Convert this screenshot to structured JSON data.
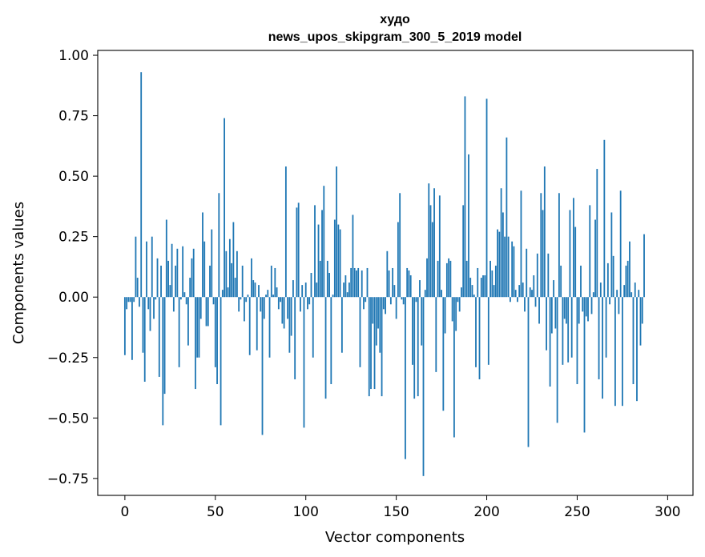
{
  "chart_data": {
    "type": "bar",
    "title_line1": "худо",
    "title_line2": "news_upos_skipgram_300_5_2019 model",
    "xlabel": "Vector components",
    "ylabel": "Components values",
    "xlim": [
      -15,
      314
    ],
    "ylim": [
      -0.82,
      1.02
    ],
    "xticks": [
      0,
      50,
      100,
      150,
      200,
      250,
      300
    ],
    "xtick_labels": [
      "0",
      "50",
      "100",
      "150",
      "200",
      "250",
      "300"
    ],
    "yticks": [
      -0.75,
      -0.5,
      -0.25,
      0.0,
      0.25,
      0.5,
      0.75,
      1.0
    ],
    "ytick_labels": [
      "−0.75",
      "−0.50",
      "−0.25",
      "0.00",
      "0.25",
      "0.50",
      "0.75",
      "1.00"
    ],
    "bar_color": "#1f77b4",
    "grid": false,
    "values": [
      -0.24,
      -0.05,
      -0.02,
      -0.02,
      -0.26,
      -0.02,
      0.25,
      0.08,
      -0.04,
      0.93,
      -0.23,
      -0.35,
      0.23,
      -0.05,
      -0.14,
      0.25,
      -0.09,
      -0.01,
      0.16,
      -0.33,
      0.13,
      -0.53,
      -0.4,
      0.32,
      0.15,
      0.05,
      0.22,
      -0.06,
      0.13,
      0.2,
      -0.29,
      -0.01,
      0.21,
      0.02,
      -0.03,
      -0.2,
      0.08,
      0.16,
      0.2,
      -0.38,
      -0.25,
      -0.25,
      -0.09,
      0.35,
      0.23,
      -0.12,
      -0.12,
      0.13,
      0.28,
      -0.03,
      -0.29,
      -0.36,
      0.43,
      -0.53,
      0.03,
      0.74,
      0.19,
      0.04,
      0.24,
      0.14,
      0.31,
      0.08,
      0.19,
      -0.06,
      -0.01,
      0.13,
      -0.1,
      -0.02,
      0.01,
      -0.24,
      0.16,
      0.07,
      0.06,
      -0.22,
      0.05,
      -0.06,
      -0.57,
      -0.09,
      0.01,
      0.03,
      -0.25,
      0.13,
      0.01,
      0.12,
      0.04,
      -0.05,
      -0.02,
      -0.11,
      -0.13,
      0.54,
      -0.09,
      -0.23,
      -0.16,
      0.07,
      -0.34,
      0.37,
      0.39,
      -0.06,
      0.05,
      -0.54,
      0.06,
      -0.05,
      -0.03,
      0.1,
      -0.25,
      0.38,
      0.06,
      0.3,
      0.15,
      0.36,
      0.46,
      -0.42,
      0.15,
      0.1,
      -0.36,
      0.01,
      0.32,
      0.54,
      0.3,
      0.28,
      -0.23,
      0.06,
      0.09,
      0.02,
      0.06,
      0.12,
      0.34,
      0.12,
      0.11,
      0.12,
      -0.29,
      0.11,
      -0.05,
      -0.02,
      0.12,
      -0.41,
      -0.38,
      -0.11,
      -0.38,
      -0.2,
      -0.13,
      -0.23,
      -0.41,
      -0.05,
      -0.07,
      0.19,
      0.11,
      -0.03,
      0.12,
      0.05,
      -0.09,
      0.31,
      0.43,
      -0.01,
      -0.03,
      -0.67,
      0.12,
      0.11,
      0.09,
      -0.28,
      -0.42,
      -0.02,
      -0.41,
      0.07,
      -0.2,
      -0.74,
      0.03,
      0.16,
      0.47,
      0.38,
      0.31,
      0.45,
      -0.31,
      0.15,
      0.42,
      0.03,
      -0.47,
      -0.15,
      0.14,
      0.16,
      0.15,
      -0.1,
      -0.58,
      -0.14,
      -0.02,
      -0.06,
      0.04,
      0.38,
      0.83,
      0.15,
      0.59,
      0.08,
      0.05,
      0.01,
      -0.29,
      0.12,
      -0.34,
      0.08,
      0.09,
      0.09,
      0.82,
      -0.28,
      0.15,
      0.11,
      0.05,
      0.13,
      0.28,
      0.27,
      0.45,
      0.35,
      0.25,
      0.66,
      0.25,
      -0.02,
      0.23,
      0.21,
      0.03,
      -0.02,
      0.05,
      0.44,
      0.06,
      -0.06,
      0.2,
      -0.62,
      0.04,
      0.03,
      0.09,
      -0.04,
      0.18,
      -0.11,
      0.43,
      0.36,
      0.54,
      -0.22,
      0.18,
      -0.37,
      -0.15,
      0.07,
      -0.13,
      -0.52,
      0.43,
      0.13,
      -0.28,
      -0.09,
      -0.11,
      -0.27,
      0.36,
      -0.25,
      0.41,
      0.29,
      -0.36,
      -0.11,
      0.13,
      -0.06,
      -0.56,
      -0.08,
      -0.1,
      0.38,
      -0.07,
      0.02,
      0.32,
      0.53,
      -0.34,
      0.06,
      -0.42,
      0.65,
      -0.25,
      0.14,
      -0.03,
      0.35,
      0.17,
      -0.45,
      0.03,
      -0.07,
      0.44,
      -0.45,
      0.05,
      0.13,
      0.15,
      0.23,
      0.02,
      -0.36,
      0.06,
      -0.43,
      0.03,
      -0.2,
      -0.11,
      0.26
    ]
  }
}
